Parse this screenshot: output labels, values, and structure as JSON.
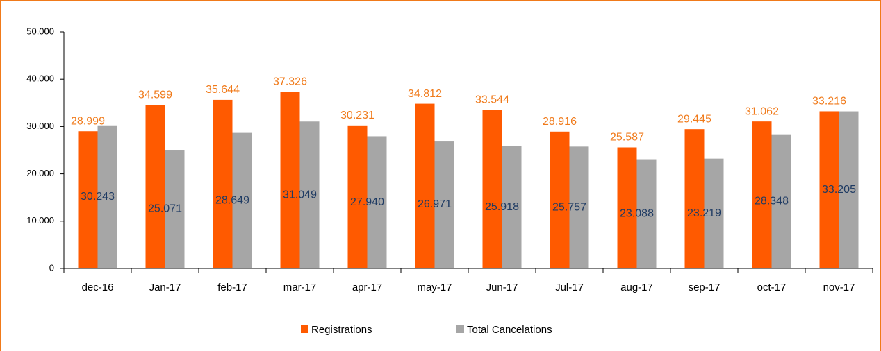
{
  "chart_data": {
    "type": "bar",
    "categories": [
      "dec-16",
      "Jan-17",
      "feb-17",
      "mar-17",
      "apr-17",
      "may-17",
      "Jun-17",
      "Jul-17",
      "aug-17",
      "sep-17",
      "oct-17",
      "nov-17"
    ],
    "series": [
      {
        "name": "Registrations",
        "color": "#ff5a00",
        "values": [
          28999,
          34599,
          35644,
          37326,
          30231,
          34812,
          33544,
          28916,
          25587,
          29445,
          31062,
          33216
        ],
        "value_labels": [
          "28.999",
          "34.599",
          "35.644",
          "37.326",
          "30.231",
          "34.812",
          "33.544",
          "28.916",
          "25.587",
          "29.445",
          "31.062",
          "33.216"
        ]
      },
      {
        "name": "Total Cancelations",
        "color": "#a6a6a6",
        "values": [
          30243,
          25071,
          28649,
          31049,
          27940,
          26971,
          25918,
          25757,
          23088,
          23219,
          28348,
          33205
        ],
        "value_labels": [
          "30.243",
          "25.071",
          "28.649",
          "31.049",
          "27.940",
          "26.971",
          "25.918",
          "25.757",
          "23.088",
          "23.219",
          "28.348",
          "33.205"
        ]
      }
    ],
    "ylim": [
      0,
      50000
    ],
    "yticks": [
      0,
      {
        "value": 10000,
        "label": "10.000"
      },
      {
        "value": 20000,
        "label": "20.000"
      },
      {
        "value": 30000,
        "label": "30.000"
      },
      {
        "value": 40000,
        "label": "40.000"
      },
      {
        "value": 50000,
        "label": "50.000"
      }
    ],
    "grid": false
  }
}
